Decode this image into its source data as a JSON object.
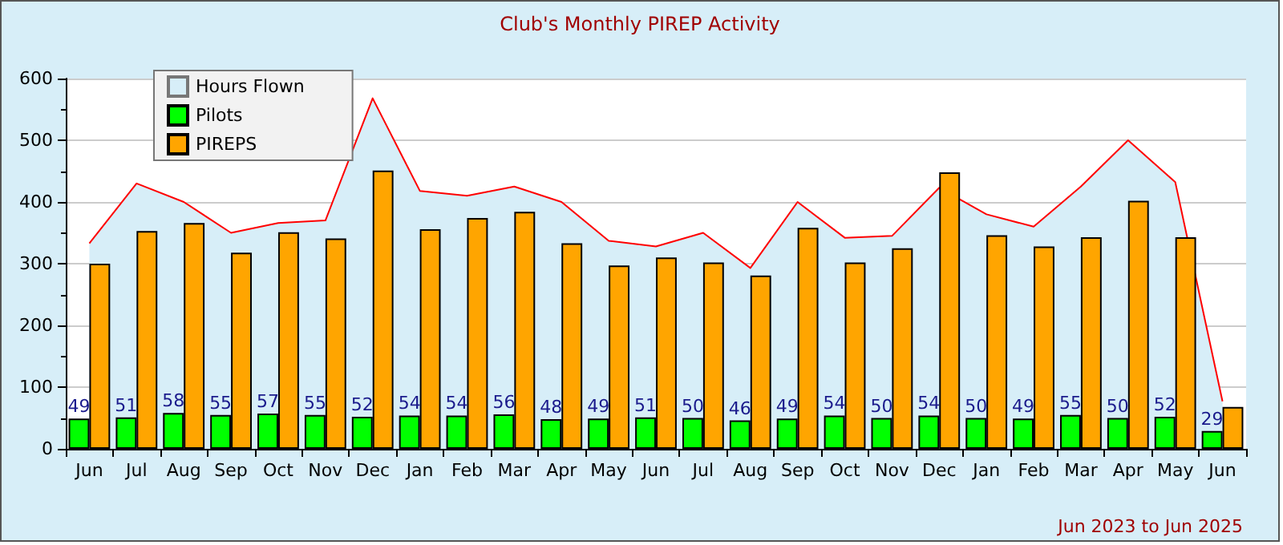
{
  "chart_data": {
    "type": "bar",
    "title": "Club's Monthly PIREP Activity",
    "categories": [
      "Jun",
      "Jul",
      "Aug",
      "Sep",
      "Oct",
      "Nov",
      "Dec",
      "Jan",
      "Feb",
      "Mar",
      "Apr",
      "May",
      "Jun",
      "Jul",
      "Aug",
      "Sep",
      "Oct",
      "Nov",
      "Dec",
      "Jan",
      "Feb",
      "Mar",
      "Apr",
      "May",
      "Jun"
    ],
    "series": [
      {
        "name": "Hours Flown",
        "type": "area",
        "color": "#ff0000",
        "values": [
          333,
          430,
          400,
          350,
          366,
          370,
          568,
          418,
          410,
          425,
          400,
          337,
          328,
          350,
          293,
          400,
          342,
          345,
          423,
          380,
          360,
          425,
          500,
          432,
          77
        ]
      },
      {
        "name": "Pilots",
        "color": "#00ff00",
        "data_labels": true,
        "values": [
          49,
          51,
          58,
          55,
          57,
          55,
          52,
          54,
          54,
          56,
          48,
          49,
          51,
          50,
          46,
          49,
          54,
          50,
          54,
          50,
          49,
          55,
          50,
          52,
          29
        ]
      },
      {
        "name": "PIREPS",
        "color": "#ffa500",
        "values": [
          300,
          353,
          366,
          318,
          351,
          341,
          451,
          356,
          374,
          384,
          333,
          297,
          310,
          302,
          281,
          358,
          302,
          325,
          448,
          346,
          328,
          343,
          402,
          343,
          68
        ]
      }
    ],
    "ylim": [
      0,
      600
    ],
    "yticks": [
      0,
      100,
      200,
      300,
      400,
      500,
      600
    ],
    "grid": "y",
    "legend": "top left",
    "annotations": [
      "Jun 2023 to Jun 2025"
    ]
  }
}
